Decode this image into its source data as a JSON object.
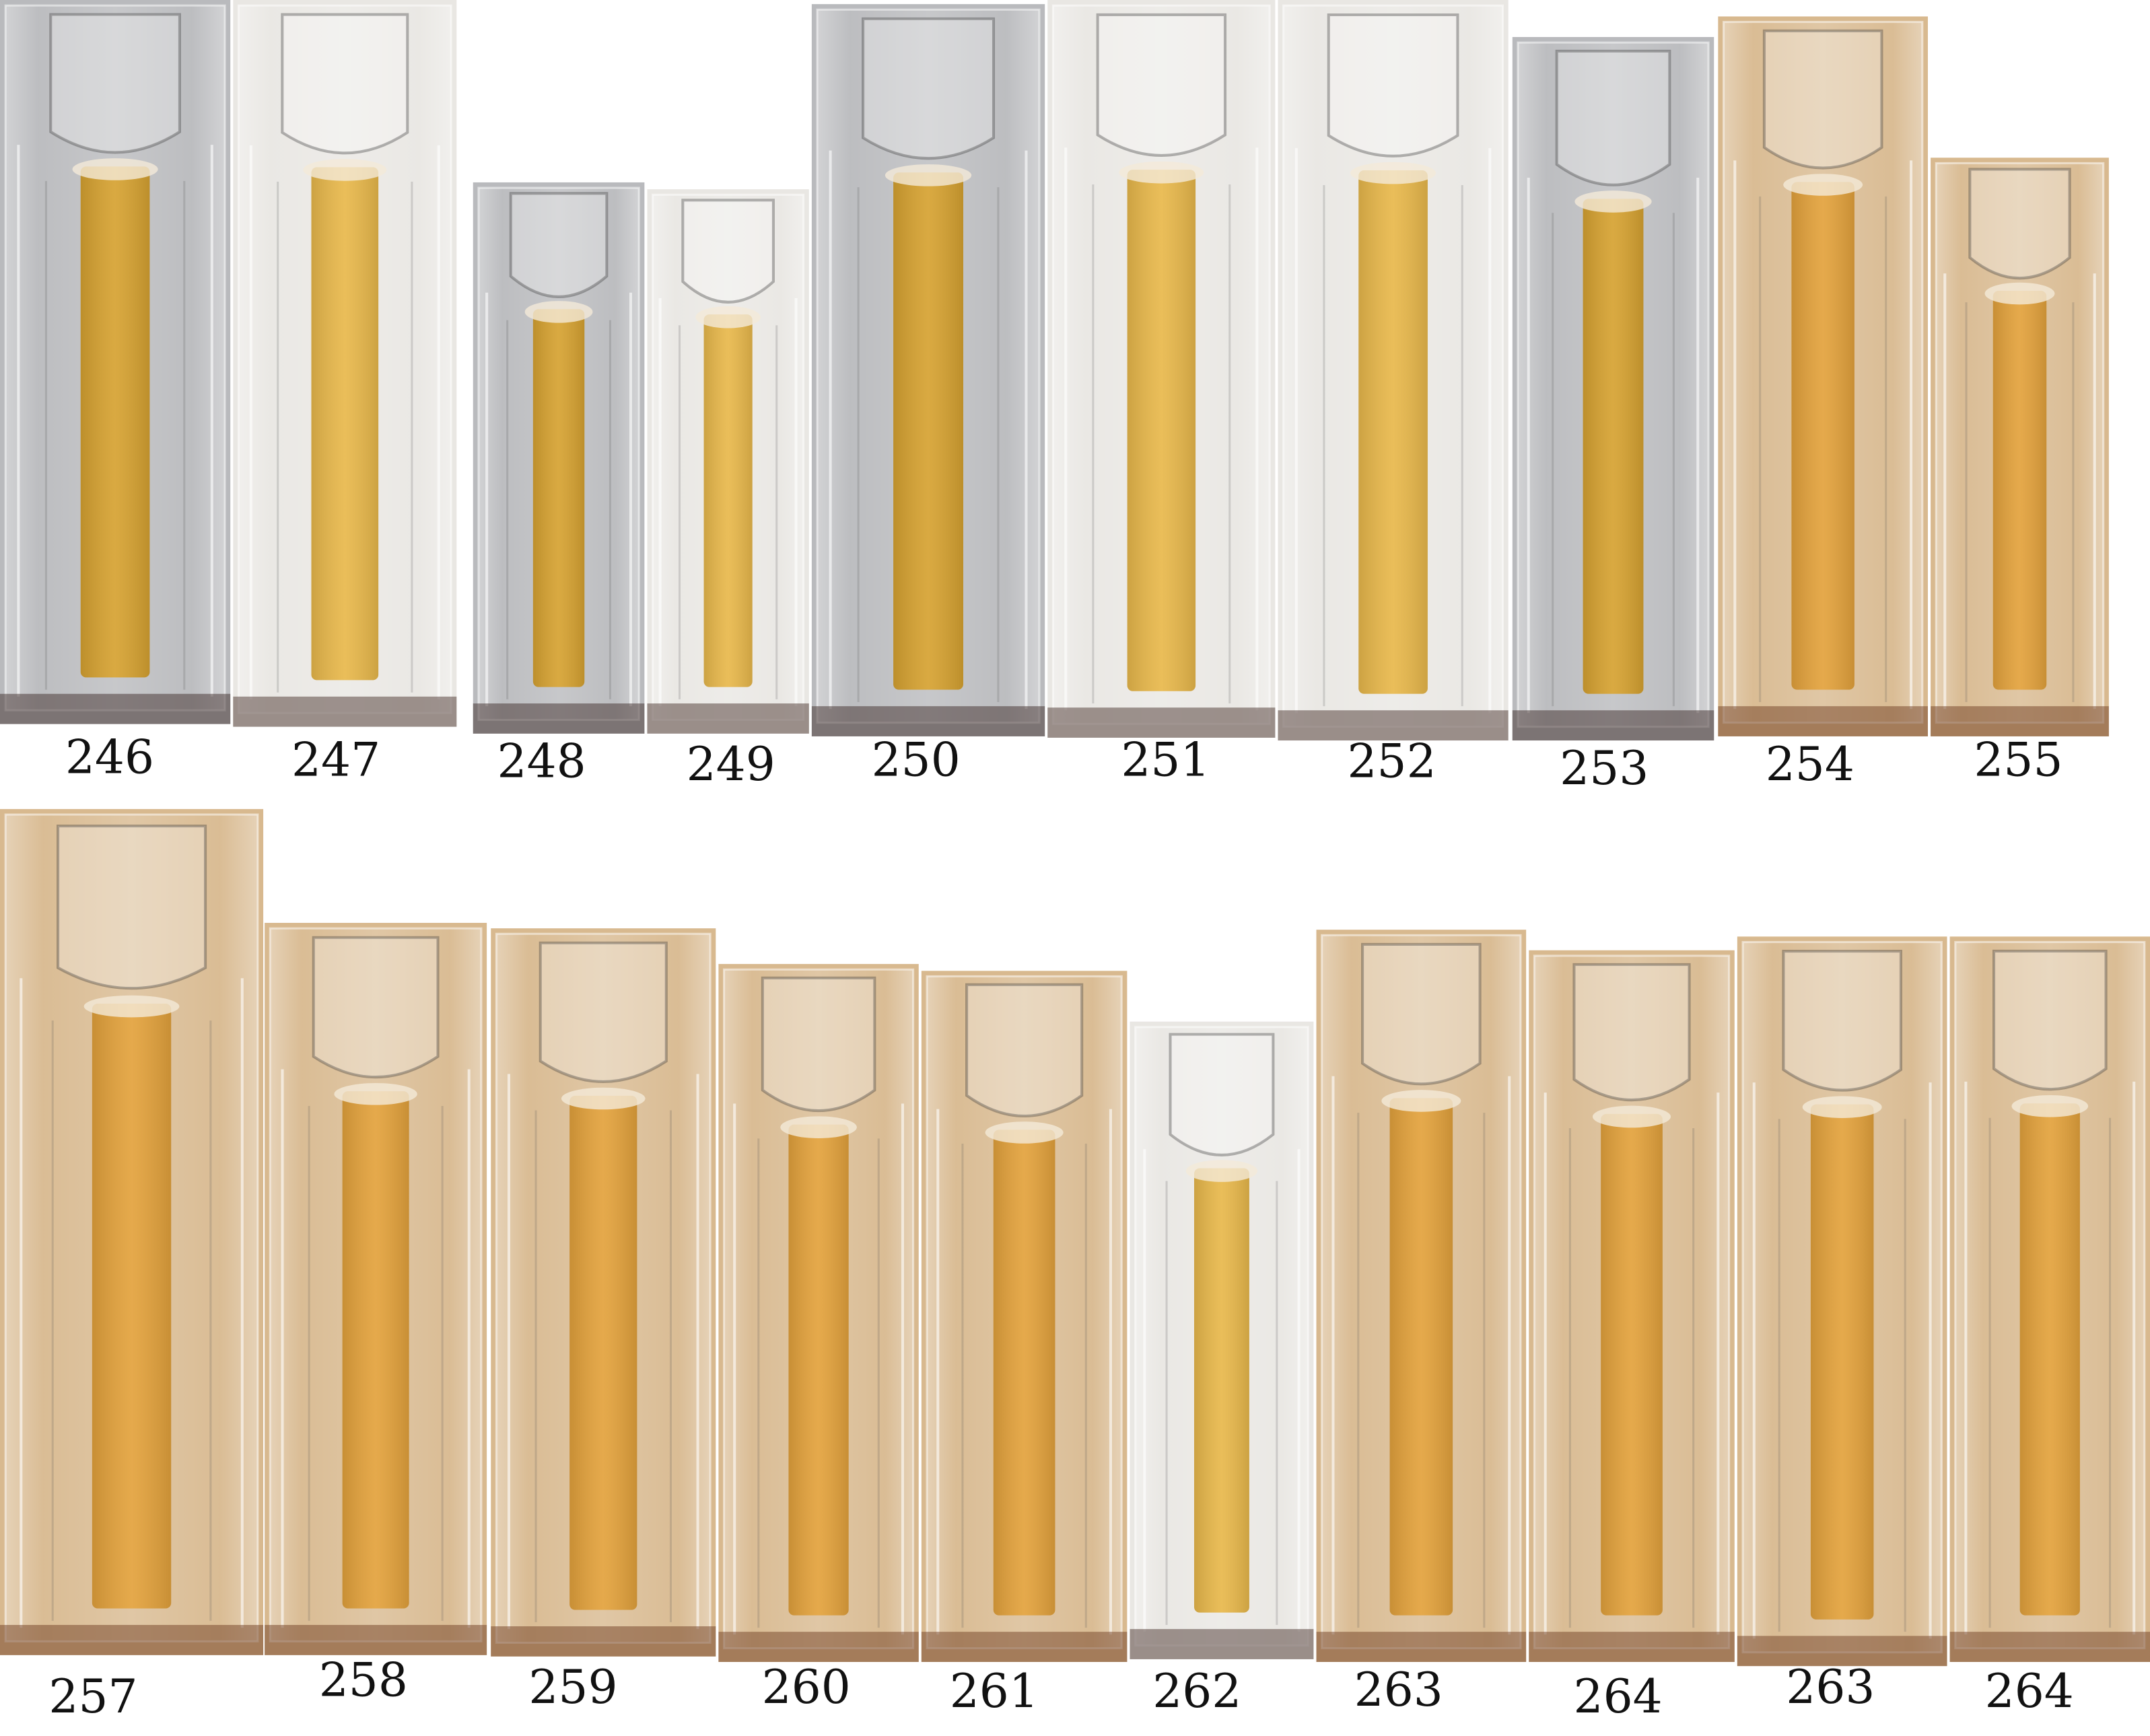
{
  "rows": [
    {
      "labels": [
        "246",
        "247",
        "248",
        "249",
        "250",
        "251",
        "252",
        "253",
        "254",
        "255"
      ]
    },
    {
      "labels": [
        "257",
        "258",
        "259",
        "260",
        "261",
        "262",
        "263",
        "264",
        "263",
        "264"
      ]
    }
  ]
}
